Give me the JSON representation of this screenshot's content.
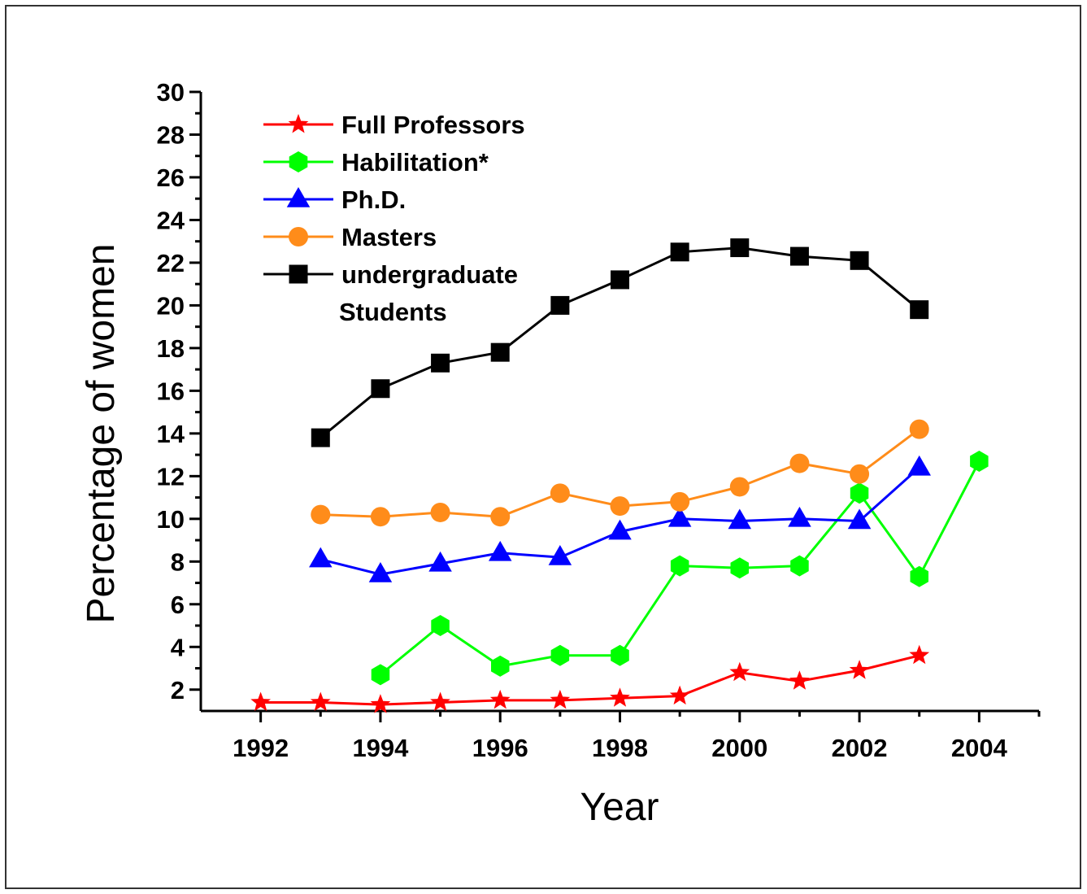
{
  "chart_data": {
    "type": "line",
    "title": "",
    "xlabel": "Year",
    "ylabel": "Percentage of women",
    "xlim": [
      1991,
      2005
    ],
    "ylim": [
      1,
      30
    ],
    "xticks": [
      1992,
      1994,
      1996,
      1998,
      2000,
      2002,
      2004
    ],
    "yticks": [
      2,
      4,
      6,
      8,
      10,
      12,
      14,
      16,
      18,
      20,
      22,
      24,
      26,
      28,
      30
    ],
    "legend_position": "top-left",
    "grid": false,
    "series": [
      {
        "name": "Full Professors",
        "color": "#ff0000",
        "marker": "star",
        "x": [
          1992,
          1993,
          1994,
          1995,
          1996,
          1997,
          1998,
          1999,
          2000,
          2001,
          2002,
          2003
        ],
        "y": [
          1.4,
          1.4,
          1.3,
          1.4,
          1.5,
          1.5,
          1.6,
          1.7,
          2.8,
          2.4,
          2.9,
          3.6
        ]
      },
      {
        "name": "Habilitation*",
        "color": "#00ff00",
        "marker": "hexagon",
        "x": [
          1994,
          1995,
          1996,
          1997,
          1998,
          1999,
          2000,
          2001,
          2002,
          2003,
          2004
        ],
        "y": [
          2.7,
          5.0,
          3.1,
          3.6,
          3.6,
          7.8,
          7.7,
          7.8,
          11.2,
          7.3,
          12.7
        ]
      },
      {
        "name": "Ph.D.",
        "color": "#0000ff",
        "marker": "triangle",
        "x": [
          1993,
          1994,
          1995,
          1996,
          1997,
          1998,
          1999,
          2000,
          2001,
          2002,
          2003
        ],
        "y": [
          8.1,
          7.4,
          7.9,
          8.4,
          8.2,
          9.4,
          10.0,
          9.9,
          10.0,
          9.9,
          12.4
        ]
      },
      {
        "name": "Masters",
        "color": "#ff8c1a",
        "marker": "circle",
        "x": [
          1993,
          1994,
          1995,
          1996,
          1997,
          1998,
          1999,
          2000,
          2001,
          2002,
          2003
        ],
        "y": [
          10.2,
          10.1,
          10.3,
          10.1,
          11.2,
          10.6,
          10.8,
          11.5,
          12.6,
          12.1,
          14.2
        ]
      },
      {
        "name": "undergraduate Students",
        "legend_lines": [
          "undergraduate",
          "Students"
        ],
        "color": "#000000",
        "marker": "square",
        "x": [
          1993,
          1994,
          1995,
          1996,
          1997,
          1998,
          1999,
          2000,
          2001,
          2002,
          2003
        ],
        "y": [
          13.8,
          16.1,
          17.3,
          17.8,
          20.0,
          21.2,
          22.5,
          22.7,
          22.3,
          22.1,
          19.8
        ]
      }
    ]
  }
}
